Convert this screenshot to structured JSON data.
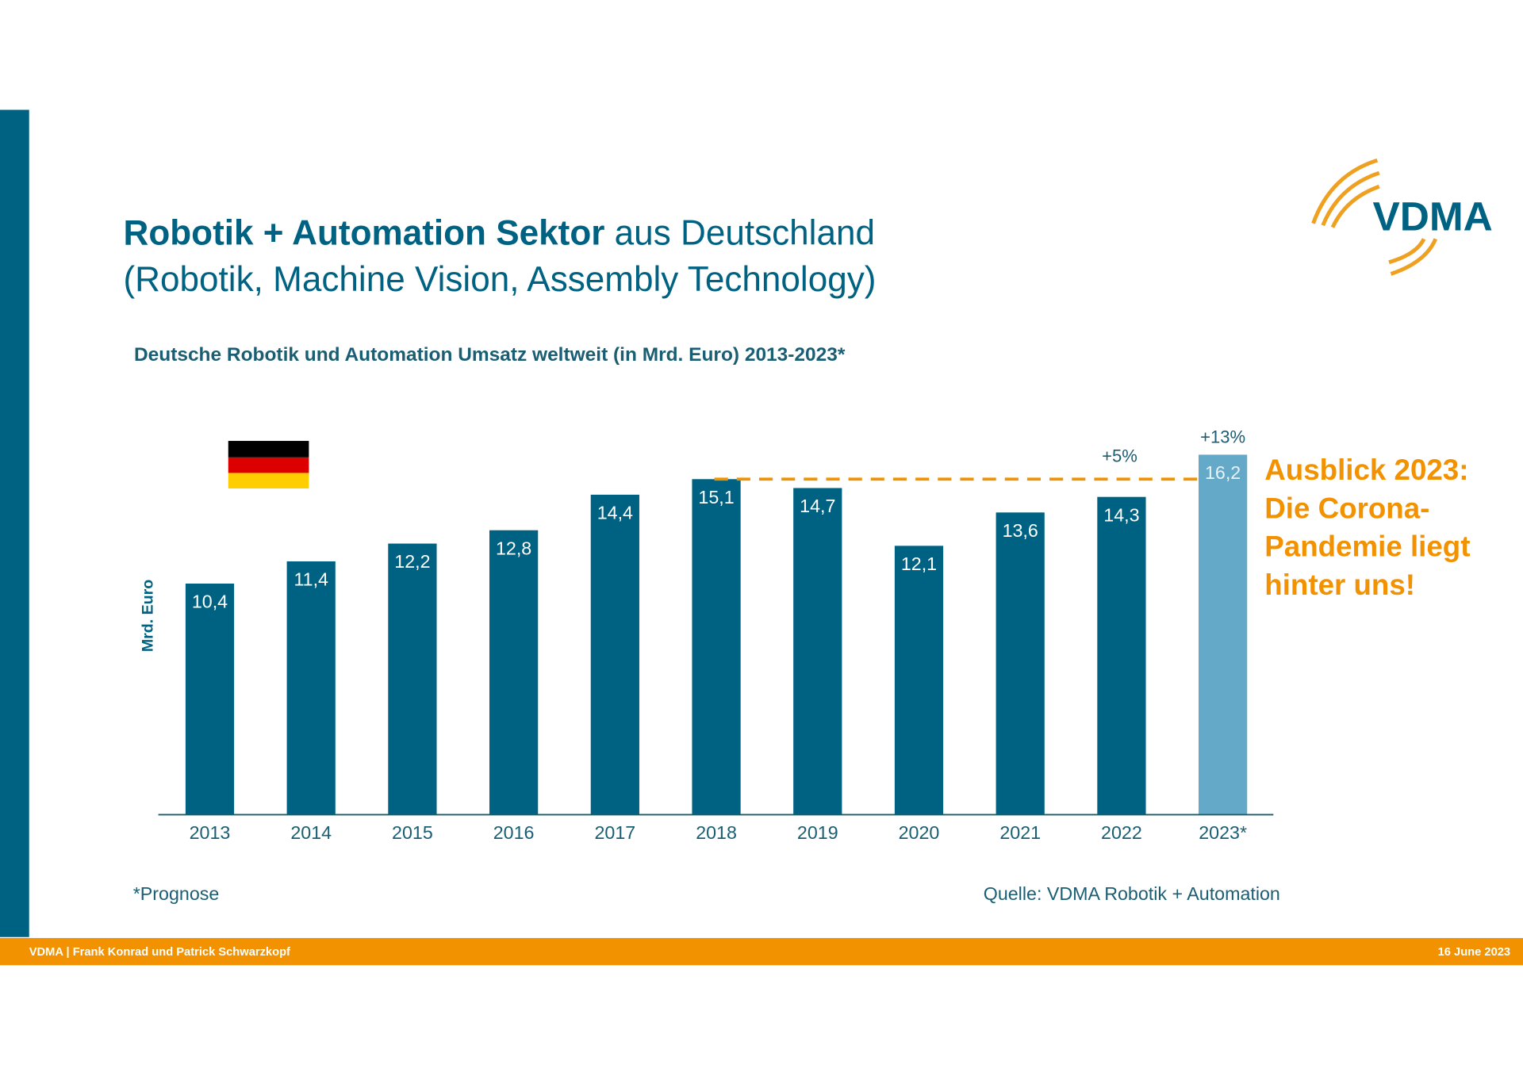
{
  "slide": {
    "title_bold": "Robotik + Automation Sektor",
    "title_rest": " aus Deutschland",
    "title_line2": "(Robotik, Machine Vision, Assembly Technology)",
    "logo": "VDMA",
    "outlook": [
      "Ausblick 2023:",
      "Die Corona-",
      "Pandemie liegt",
      "hinter uns!"
    ],
    "footnote": "*Prognose",
    "source": "Quelle: VDMA Robotik + Automation",
    "footer_left": "VDMA | Frank Konrad und Patrick Schwarzkopf",
    "footer_right": "16 June 2023"
  },
  "chart_data": {
    "type": "bar",
    "title": "Deutsche Robotik und Automation Umsatz weltweit (in Mrd. Euro) 2013-2023*",
    "y_label": "Mrd. Euro",
    "categories": [
      "2013",
      "2014",
      "2015",
      "2016",
      "2017",
      "2018",
      "2019",
      "2020",
      "2021",
      "2022",
      "2023*"
    ],
    "values": [
      10.4,
      11.4,
      12.2,
      12.8,
      14.4,
      15.1,
      14.7,
      12.1,
      13.6,
      14.3,
      16.2
    ],
    "value_labels": [
      "10,4",
      "11,4",
      "12,2",
      "12,8",
      "14,4",
      "15,1",
      "14,7",
      "12,1",
      "13,6",
      "14,3",
      "16,2"
    ],
    "colors": [
      "#006282",
      "#006282",
      "#006282",
      "#006282",
      "#006282",
      "#006282",
      "#006282",
      "#006282",
      "#006282",
      "#006282",
      "#65a9c9"
    ],
    "annotations": [
      "+5%",
      "+13%"
    ],
    "ylim": [
      0,
      18
    ]
  }
}
